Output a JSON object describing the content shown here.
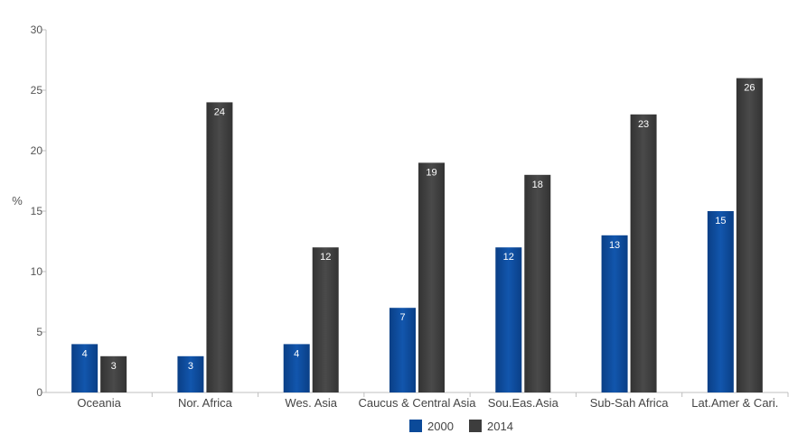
{
  "chart_data": {
    "type": "bar",
    "title": "",
    "xlabel": "",
    "ylabel": "%",
    "ylim": [
      0,
      30
    ],
    "yticks": [
      0,
      5,
      10,
      15,
      20,
      25,
      30
    ],
    "categories": [
      "Oceania",
      "Nor. Africa",
      "Wes. Asia",
      "Caucus & Central Asia",
      "Sou.Eas.Asia",
      "Sub-Sah Africa",
      "Lat.Amer & Cari."
    ],
    "series": [
      {
        "name": "2000",
        "color": "#0b4a99",
        "values": [
          4,
          3,
          4,
          7,
          12,
          13,
          15
        ]
      },
      {
        "name": "2014",
        "color": "#3d3d3d",
        "values": [
          3,
          24,
          12,
          19,
          18,
          23,
          26
        ]
      }
    ],
    "legend_position": "bottom-center",
    "grid": false
  }
}
